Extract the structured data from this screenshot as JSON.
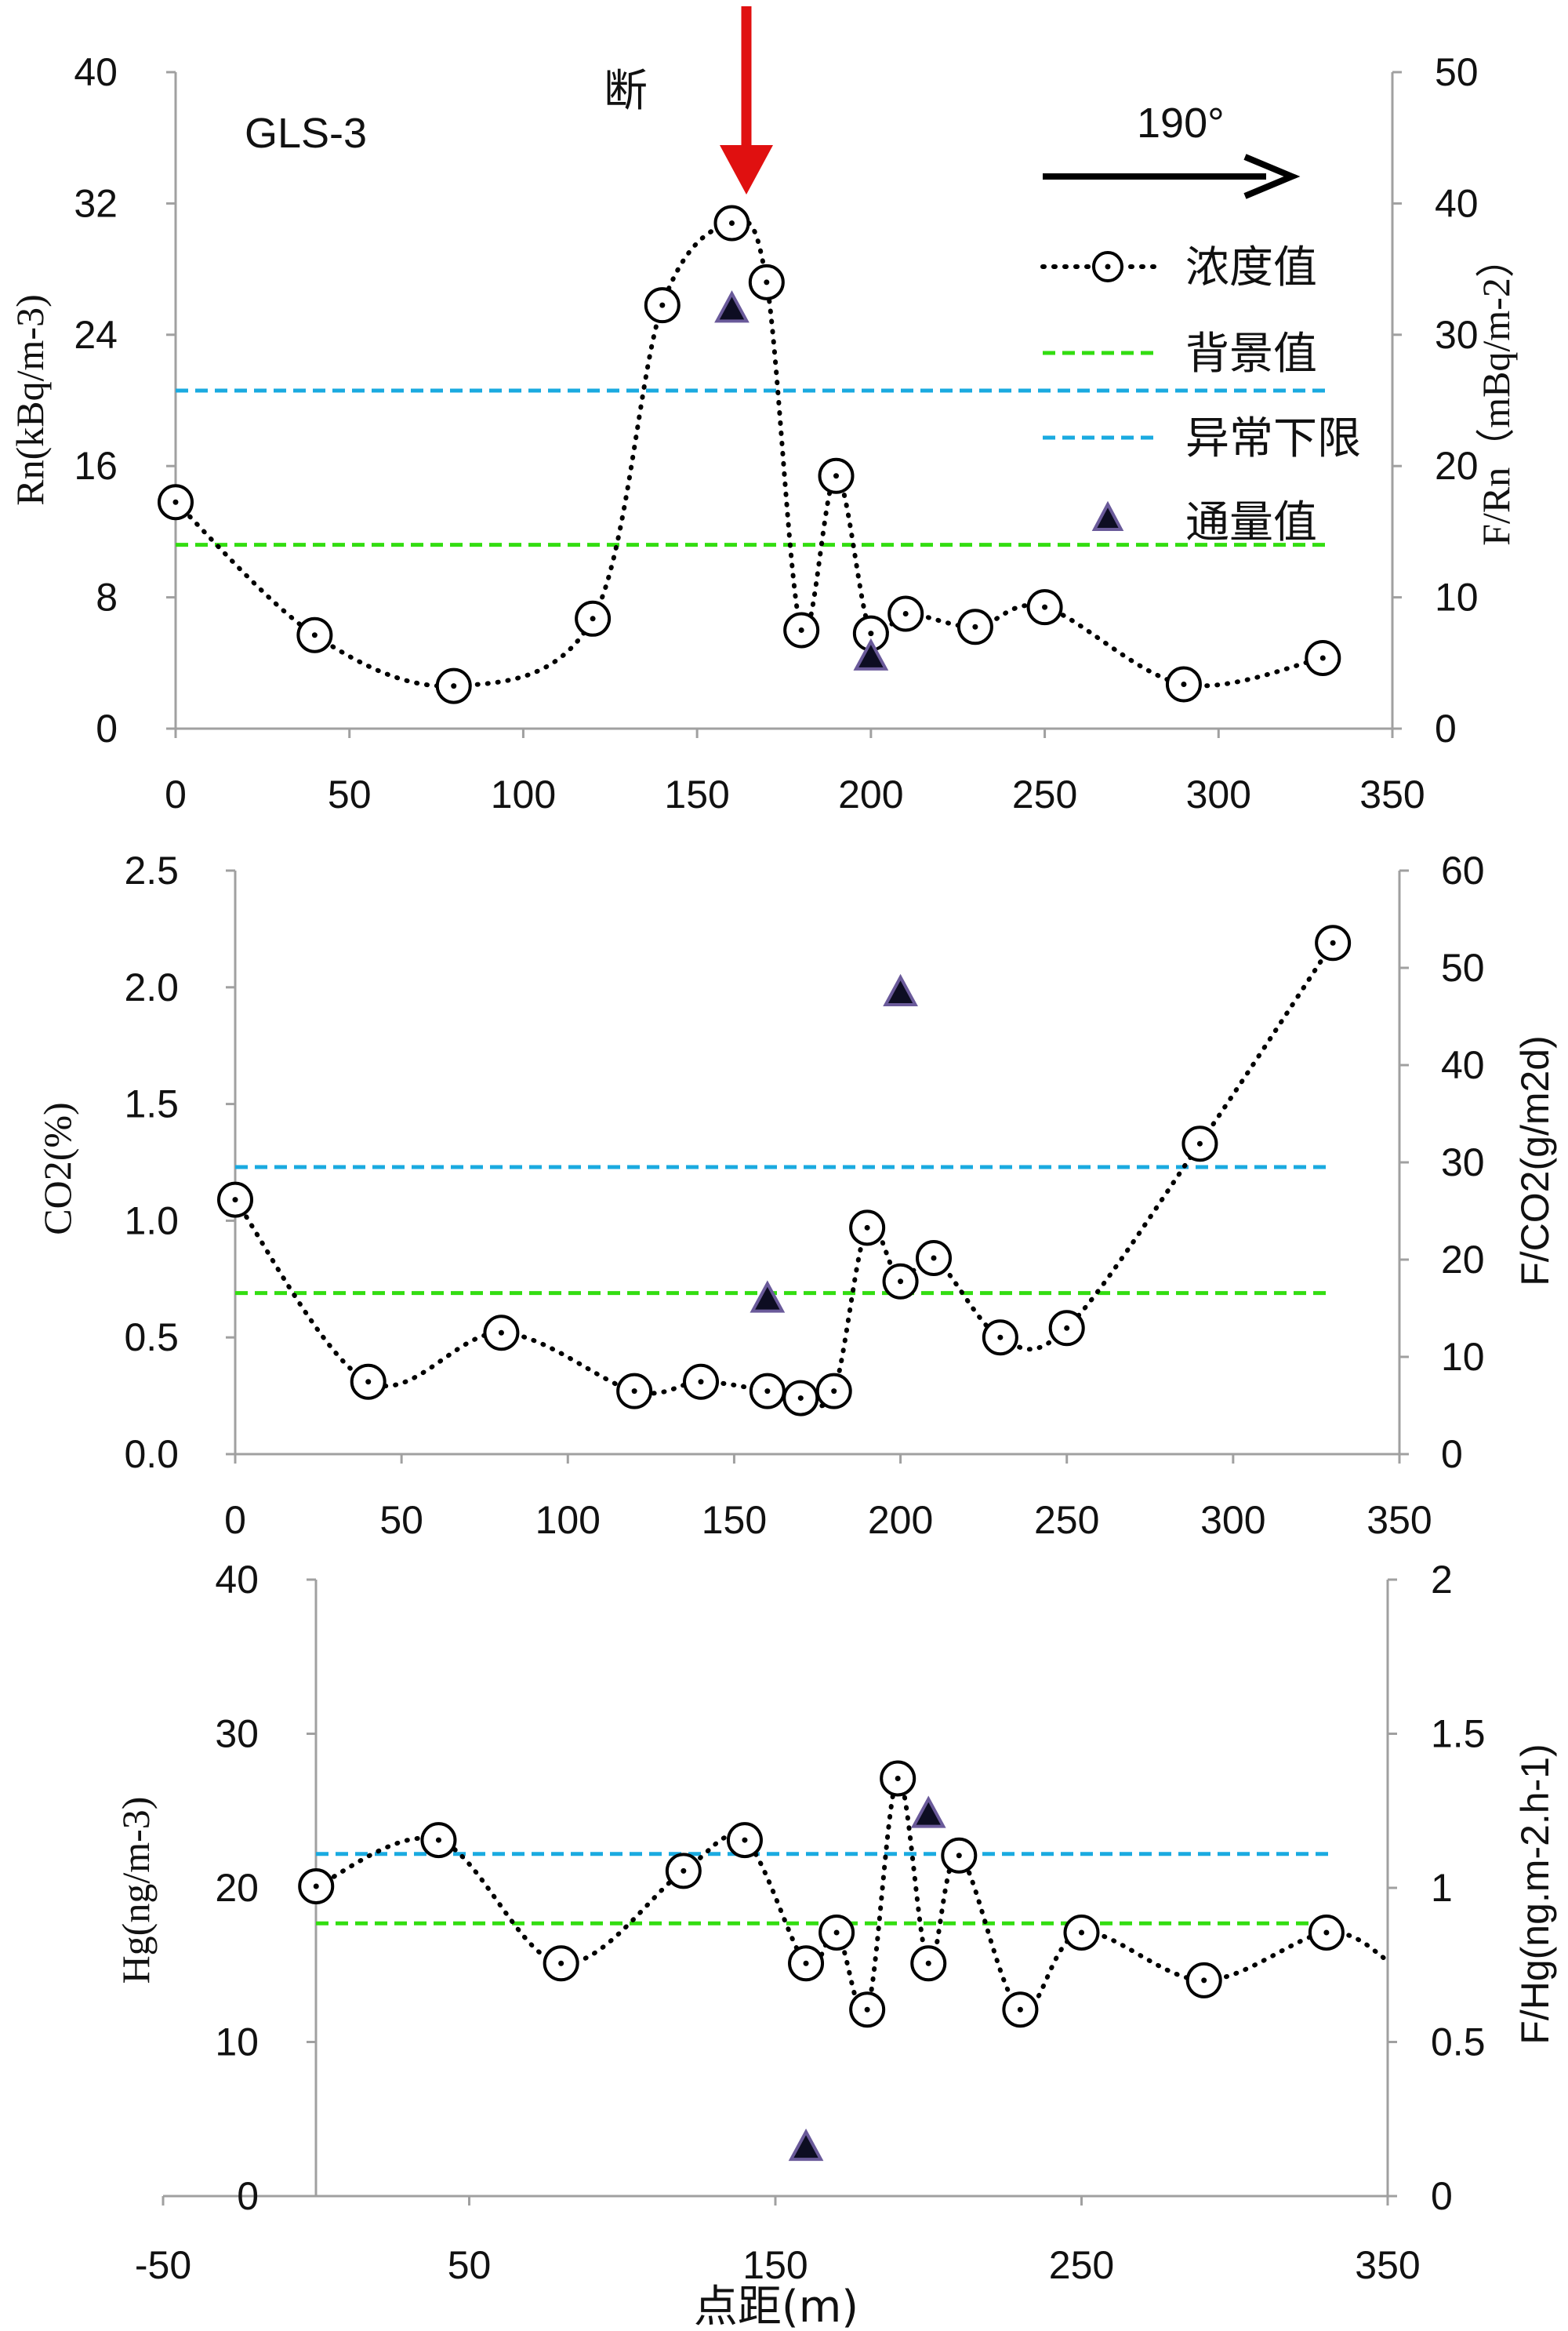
{
  "chart_data": [
    {
      "type": "line",
      "panel": "Rn",
      "label": "GLS-3",
      "fault_text": "断",
      "direction_label": "190°",
      "xlim": [
        0,
        350
      ],
      "x_ticks": [
        "0",
        "50",
        "100",
        "150",
        "200",
        "250",
        "300",
        "350"
      ],
      "ylim_left": [
        0,
        40
      ],
      "y_ticks_left": [
        "0",
        "8",
        "16",
        "24",
        "32",
        "40"
      ],
      "ylim_right": [
        0,
        50
      ],
      "y_ticks_right": [
        "0",
        "10",
        "20",
        "30",
        "40",
        "50"
      ],
      "ylabel_left": "Rn(kBq/m-3)",
      "ylabel_right": "F/Rn（mBq/m-2）",
      "legend": [
        "浓度值",
        "背景值",
        "异常下限",
        "通量值"
      ],
      "concentration": {
        "x": [
          0,
          40,
          80,
          120,
          140,
          160,
          170,
          180,
          190,
          200,
          210,
          230,
          250,
          290,
          330
        ],
        "y": [
          13.8,
          5.7,
          2.6,
          6.7,
          25.8,
          30.8,
          27.2,
          6.0,
          15.4,
          5.8,
          7.0,
          6.2,
          7.4,
          2.7,
          4.3
        ]
      },
      "background": 11.2,
      "anomaly_limit": 20.6,
      "flux": {
        "x": [
          160,
          200
        ],
        "y": [
          32.0,
          5.5
        ]
      }
    },
    {
      "type": "line",
      "panel": "CO2",
      "xlim": [
        0,
        350
      ],
      "x_ticks": [
        "0",
        "50",
        "100",
        "150",
        "200",
        "250",
        "300",
        "350"
      ],
      "ylim_left": [
        0,
        2.5
      ],
      "y_ticks_left": [
        "0.0",
        "0.5",
        "1.0",
        "1.5",
        "2.0",
        "2.5"
      ],
      "ylim_right": [
        0,
        60
      ],
      "y_ticks_right": [
        "0",
        "10",
        "20",
        "30",
        "40",
        "50",
        "60"
      ],
      "ylabel_left": "CO2(%)",
      "ylabel_right": "F/CO2(g/m2d)",
      "concentration": {
        "x": [
          0,
          40,
          80,
          120,
          140,
          160,
          170,
          180,
          190,
          200,
          210,
          230,
          250,
          290,
          330
        ],
        "y": [
          1.09,
          0.31,
          0.52,
          0.27,
          0.31,
          0.27,
          0.24,
          0.27,
          0.97,
          0.74,
          0.84,
          0.5,
          0.54,
          1.33,
          2.19
        ]
      },
      "background": 0.69,
      "anomaly_limit": 1.23,
      "flux": {
        "x": [
          160,
          200
        ],
        "y": [
          16.0,
          47.5
        ]
      }
    },
    {
      "type": "line",
      "panel": "Hg",
      "xlim": [
        -50,
        350
      ],
      "x_ticks": [
        "-50",
        "50",
        "150",
        "250",
        "350"
      ],
      "xlabel": "点距(m)",
      "ylim_left": [
        0,
        40
      ],
      "y_ticks_left": [
        "0",
        "10",
        "20",
        "30",
        "40"
      ],
      "ylim_right": [
        0,
        2
      ],
      "y_ticks_right": [
        "0",
        "0.5",
        "1",
        "1.5",
        "2"
      ],
      "ylabel_left": "Hg(ng/m-3)",
      "ylabel_right": "F/Hg(ng.m-2.h-1)",
      "concentration": {
        "x": [
          0,
          40,
          80,
          120,
          140,
          160,
          170,
          180,
          190,
          200,
          210,
          230,
          250,
          290,
          330,
          350
        ],
        "y": [
          20.1,
          23.1,
          15.1,
          21.1,
          23.1,
          15.1,
          17.1,
          12.1,
          27.1,
          15.1,
          22.1,
          12.1,
          17.1,
          14.0,
          17.1,
          15.3
        ]
      },
      "background": 17.7,
      "anomaly_limit": 22.2,
      "flux": {
        "x": [
          160,
          200
        ],
        "y": [
          0.16,
          1.24
        ]
      }
    }
  ],
  "colors": {
    "concentration": "#000000",
    "background": "#33dd11",
    "anomaly": "#1aaae0",
    "flux_fill": "#0d0d22",
    "flux_stroke": "#6a5a9a",
    "arrow_red": "#e01010",
    "axis": "#a0a0a0"
  }
}
